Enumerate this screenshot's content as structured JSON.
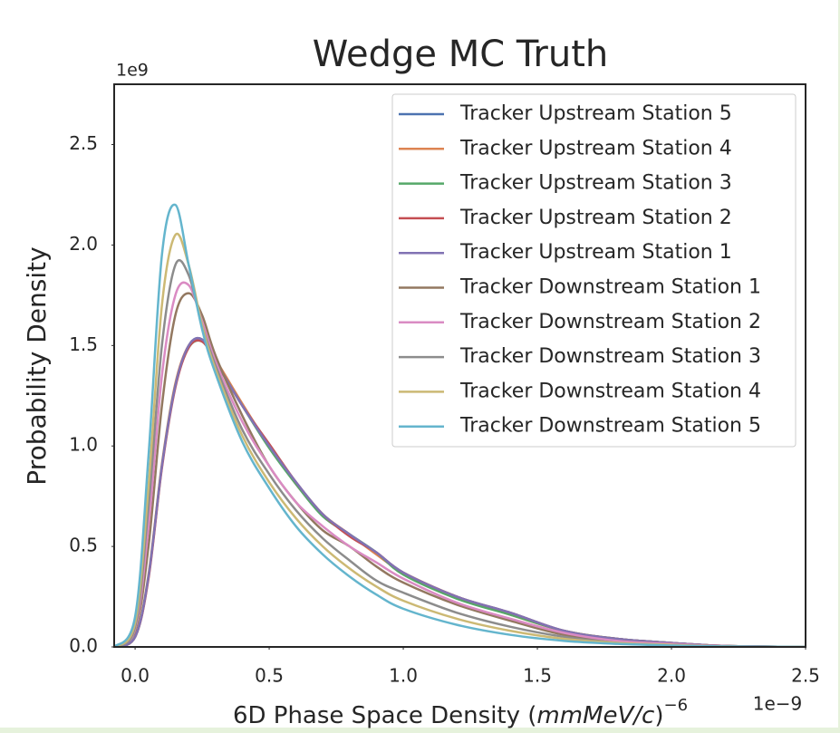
{
  "chart_data": {
    "type": "line",
    "title": "Wedge MC Truth",
    "ylabel": "Probability Density",
    "xlabel": [
      "6D Phase Space Density (",
      "mmMeV/c",
      ")",
      "−6"
    ],
    "y_offset_label": "1e9",
    "x_offset_label": "1e−9",
    "xlim": [
      -0.078,
      2.5
    ],
    "ylim": [
      0,
      2.8
    ],
    "xticks": [
      {
        "value": 0,
        "label": "0.0"
      },
      {
        "value": 0.5,
        "label": "0.5"
      },
      {
        "value": 1,
        "label": "1.0"
      },
      {
        "value": 1.5,
        "label": "1.5"
      },
      {
        "value": 2,
        "label": "2.0"
      },
      {
        "value": 2.5,
        "label": "2.5"
      }
    ],
    "yticks": [
      {
        "value": 0,
        "label": "0.0"
      },
      {
        "value": 0.5,
        "label": "0.5"
      },
      {
        "value": 1,
        "label": "1.0"
      },
      {
        "value": 1.5,
        "label": "1.5"
      },
      {
        "value": 2,
        "label": "2.0"
      },
      {
        "value": 2.5,
        "label": "2.5"
      }
    ],
    "grid": false,
    "legend": "upper right",
    "x": [
      -0.078,
      0,
      0.05,
      0.1,
      0.15,
      0.2,
      0.25,
      0.3,
      0.4,
      0.5,
      0.6,
      0.7,
      0.8,
      0.9,
      1.0,
      1.2,
      1.4,
      1.6,
      1.8,
      2.0,
      2.2,
      2.5
    ],
    "series": [
      {
        "name": "Tracker Upstream Station 5",
        "color": "#4c72b0",
        "values": [
          0,
          0.05,
          0.35,
          0.9,
          1.3,
          1.5,
          1.53,
          1.42,
          1.2,
          1.0,
          0.82,
          0.66,
          0.56,
          0.47,
          0.37,
          0.25,
          0.17,
          0.08,
          0.04,
          0.02,
          0.005,
          0
        ]
      },
      {
        "name": "Tracker Upstream Station 4",
        "color": "#dd8452",
        "values": [
          0,
          0.05,
          0.36,
          0.91,
          1.31,
          1.5,
          1.52,
          1.43,
          1.21,
          1.0,
          0.81,
          0.66,
          0.56,
          0.46,
          0.37,
          0.25,
          0.16,
          0.08,
          0.04,
          0.02,
          0.005,
          0
        ]
      },
      {
        "name": "Tracker Upstream Station 3",
        "color": "#55a868",
        "values": [
          0,
          0.05,
          0.35,
          0.9,
          1.3,
          1.49,
          1.52,
          1.42,
          1.2,
          0.99,
          0.81,
          0.65,
          0.56,
          0.47,
          0.36,
          0.24,
          0.16,
          0.08,
          0.04,
          0.02,
          0.005,
          0
        ]
      },
      {
        "name": "Tracker Upstream Station 2",
        "color": "#c44e52",
        "values": [
          0,
          0.05,
          0.34,
          0.89,
          1.29,
          1.49,
          1.52,
          1.42,
          1.2,
          1.01,
          0.82,
          0.66,
          0.55,
          0.47,
          0.37,
          0.25,
          0.17,
          0.08,
          0.04,
          0.02,
          0.005,
          0
        ]
      },
      {
        "name": "Tracker Upstream Station 1",
        "color": "#8172b3",
        "values": [
          0,
          0.05,
          0.35,
          0.9,
          1.3,
          1.5,
          1.53,
          1.42,
          1.2,
          1.0,
          0.82,
          0.66,
          0.56,
          0.47,
          0.37,
          0.25,
          0.17,
          0.08,
          0.04,
          0.02,
          0.005,
          0
        ]
      },
      {
        "name": "Tracker Downstream Station 1",
        "color": "#937860",
        "values": [
          0,
          0.08,
          0.5,
          1.2,
          1.65,
          1.76,
          1.65,
          1.45,
          1.15,
          0.9,
          0.72,
          0.58,
          0.5,
          0.4,
          0.32,
          0.21,
          0.13,
          0.06,
          0.03,
          0.015,
          0.004,
          0
        ]
      },
      {
        "name": "Tracker Downstream Station 2",
        "color": "#da8bc3",
        "values": [
          0,
          0.09,
          0.6,
          1.35,
          1.75,
          1.8,
          1.62,
          1.42,
          1.12,
          0.9,
          0.72,
          0.6,
          0.5,
          0.42,
          0.34,
          0.22,
          0.14,
          0.07,
          0.03,
          0.015,
          0.004,
          0
        ]
      },
      {
        "name": "Tracker Downstream Station 3",
        "color": "#8c8c8c",
        "values": [
          0,
          0.1,
          0.7,
          1.5,
          1.9,
          1.85,
          1.6,
          1.4,
          1.08,
          0.86,
          0.68,
          0.54,
          0.43,
          0.33,
          0.27,
          0.17,
          0.1,
          0.05,
          0.02,
          0.01,
          0.003,
          0
        ]
      },
      {
        "name": "Tracker Downstream Station 4",
        "color": "#ccb974",
        "values": [
          0,
          0.12,
          0.8,
          1.7,
          2.05,
          1.9,
          1.6,
          1.38,
          1.05,
          0.82,
          0.64,
          0.5,
          0.39,
          0.3,
          0.23,
          0.14,
          0.08,
          0.04,
          0.02,
          0.01,
          0.002,
          0
        ]
      },
      {
        "name": "Tracker Downstream Station 5",
        "color": "#64b5cd",
        "values": [
          0,
          0.15,
          0.95,
          1.95,
          2.2,
          1.9,
          1.58,
          1.36,
          1.02,
          0.79,
          0.6,
          0.46,
          0.35,
          0.26,
          0.19,
          0.11,
          0.06,
          0.03,
          0.015,
          0.007,
          0.002,
          0
        ]
      }
    ]
  }
}
